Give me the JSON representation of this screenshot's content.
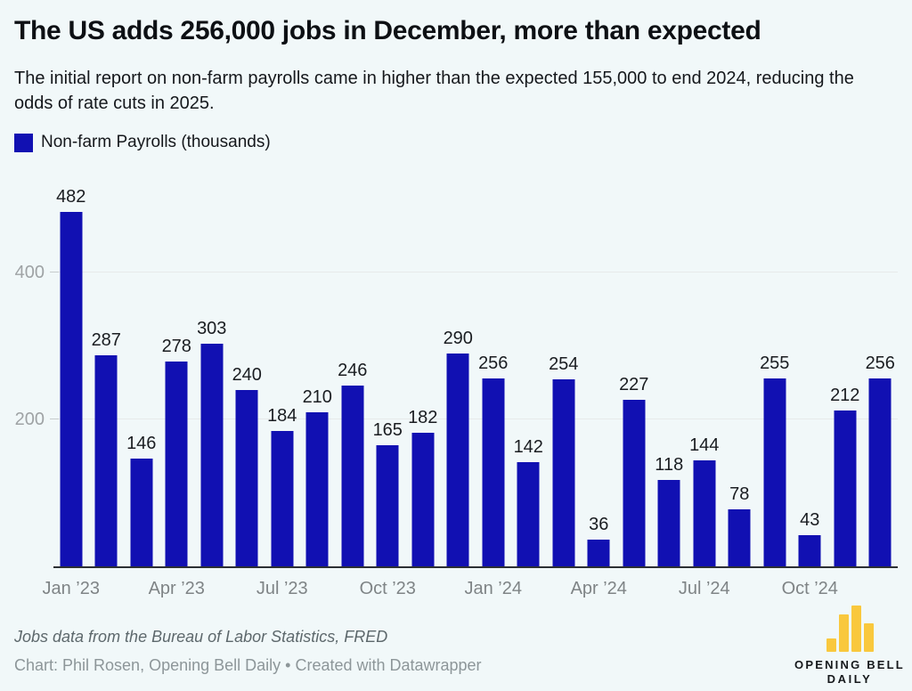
{
  "header": {
    "title": "The US adds 256,000 jobs in December, more than expected",
    "subtitle": "The initial report on non-farm payrolls came in higher than the expected 155,000 to end 2024, reducing the odds of rate cuts in 2025."
  },
  "legend": {
    "label": "Non-farm Payrolls (thousands)"
  },
  "chart_data": {
    "type": "bar",
    "title": "The US adds 256,000 jobs in December, more than expected",
    "series_name": "Non-farm Payrolls (thousands)",
    "categories": [
      "Jan ’23",
      "Feb ’23",
      "Mar ’23",
      "Apr ’23",
      "May ’23",
      "Jun ’23",
      "Jul ’23",
      "Aug ’23",
      "Sep ’23",
      "Oct ’23",
      "Nov ’23",
      "Dec ’23",
      "Jan ’24",
      "Feb ’24",
      "Mar ’24",
      "Apr ’24",
      "May ’24",
      "Jun ’24",
      "Jul ’24",
      "Aug ’24",
      "Sep ’24",
      "Oct ’24",
      "Nov ’24",
      "Dec ’24"
    ],
    "values": [
      482,
      287,
      146,
      278,
      303,
      240,
      184,
      210,
      246,
      165,
      182,
      290,
      256,
      142,
      254,
      36,
      227,
      118,
      144,
      78,
      255,
      43,
      212,
      256
    ],
    "x_tick_indices": [
      0,
      3,
      6,
      9,
      12,
      15,
      18,
      21
    ],
    "x_tick_labels": [
      "Jan ’23",
      "Apr ’23",
      "Jul ’23",
      "Oct ’23",
      "Jan ’24",
      "Apr ’24",
      "Jul ’24",
      "Oct ’24"
    ],
    "y_ticks": [
      200,
      400
    ],
    "ylim": [
      0,
      528
    ],
    "grid": "horizontal",
    "legend_position": "top-left",
    "data_labels": true,
    "xlabel": "",
    "ylabel": ""
  },
  "colors": {
    "bar": "#1110b2",
    "background": "#f1f8f9",
    "logo_yellow": "#f9c83d"
  },
  "footer": {
    "source": "Jobs data from the Bureau of Labor Statistics, FRED",
    "credit": "Chart: Phil Rosen, Opening Bell Daily • Created with Datawrapper",
    "logo_line1": "OPENING BELL",
    "logo_line2": "DAILY"
  }
}
